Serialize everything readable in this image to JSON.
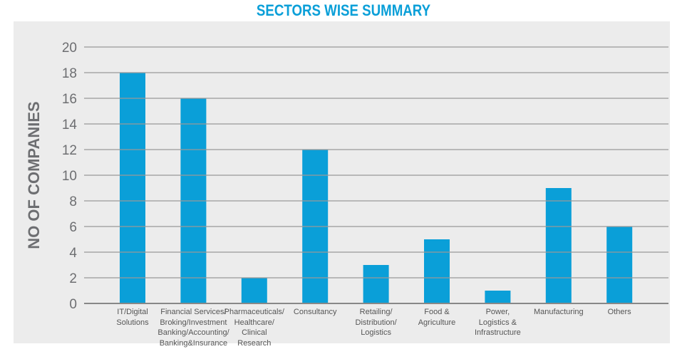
{
  "chart_data": {
    "type": "bar",
    "title": "SECTORS WISE SUMMARY",
    "xlabel": "",
    "ylabel": "NO OF COMPANIES",
    "ylim": [
      0,
      20
    ],
    "yticks": [
      0,
      2,
      4,
      6,
      8,
      10,
      12,
      14,
      16,
      18,
      20
    ],
    "grid": true,
    "bar_color": "#0a9fd8",
    "categories": [
      "IT/Digital\nSolutions",
      "Financial Services/\nBroking/Investment\nBanking/Accounting/\nBanking&Insurance",
      "Pharmaceuticals/\nHealthcare/\nClinical\nResearch",
      "Consultancy",
      "Retailing/\nDistribution/\nLogistics",
      "Food &\nAgriculture",
      "Power,\nLogistics &\nInfrastructure",
      "Manufacturing",
      "Others"
    ],
    "values": [
      18,
      16,
      2,
      12,
      3,
      5,
      1,
      9,
      6
    ]
  }
}
